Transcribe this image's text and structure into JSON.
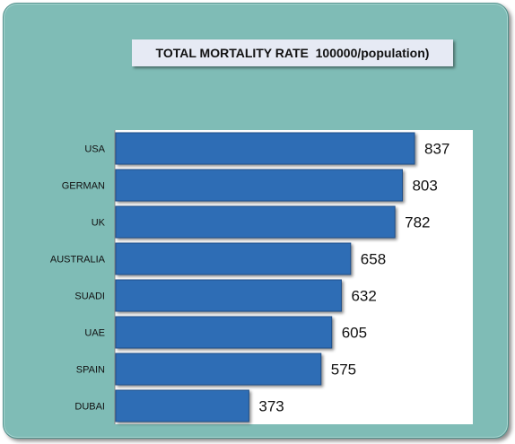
{
  "chart_data": {
    "type": "bar",
    "orientation": "horizontal",
    "title": "TOTAL MORTALITY RATE  100000/population)",
    "categories": [
      "USA",
      "GERMAN",
      "UK",
      "AUSTRALIA",
      "SUADI",
      "UAE",
      "SPAIN",
      "DUBAI"
    ],
    "values": [
      837,
      803,
      782,
      658,
      632,
      605,
      575,
      373
    ],
    "xlabel": "",
    "ylabel": "",
    "xlim": [
      0,
      1000
    ],
    "grid": false,
    "legend": "none",
    "data_labels": true,
    "colors": {
      "bar": "#2e6db5",
      "bar_edge": "#1d4e8a",
      "plot_background": "#ffffff",
      "frame_background": "#7fbcb6",
      "title_background": "#e6eaf4"
    }
  }
}
